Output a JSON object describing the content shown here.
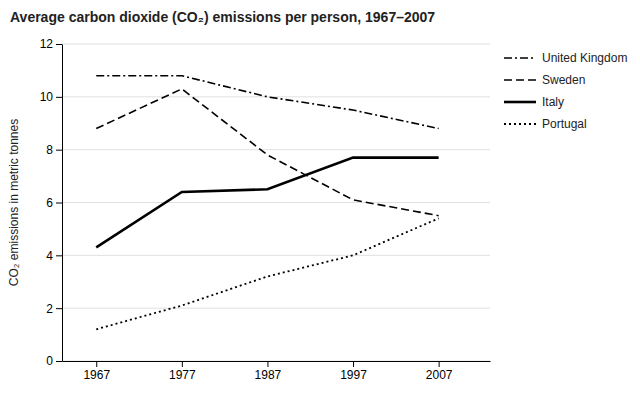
{
  "chart_data": {
    "type": "line",
    "title": "Average carbon dioxide (CO₂) emissions per person, 1967–2007",
    "ylabel": "CO₂ emissions in metric tonnes",
    "x": [
      1967,
      1977,
      1987,
      1997,
      2007
    ],
    "series": [
      {
        "name": "United Kingdom",
        "color": "#000000",
        "line_style": "dashdot",
        "values": [
          10.8,
          10.8,
          10.0,
          9.5,
          8.8
        ]
      },
      {
        "name": "Sweden",
        "color": "#000000",
        "line_style": "dashed",
        "values": [
          8.8,
          10.3,
          7.8,
          6.1,
          5.5
        ]
      },
      {
        "name": "Italy",
        "color": "#000000",
        "line_style": "solid",
        "values": [
          4.3,
          6.4,
          6.5,
          7.7,
          7.7
        ]
      },
      {
        "name": "Portugal",
        "color": "#000000",
        "line_style": "dotted",
        "values": [
          1.2,
          2.1,
          3.2,
          4.0,
          5.4
        ]
      }
    ],
    "xlim": [
      1963,
      2013
    ],
    "xticks": [
      1967,
      1977,
      1987,
      1997,
      2007
    ],
    "ylim": [
      0,
      12
    ],
    "yticks": [
      0,
      2,
      4,
      6,
      8,
      10,
      12
    ],
    "grid": "y",
    "legend": "right"
  }
}
